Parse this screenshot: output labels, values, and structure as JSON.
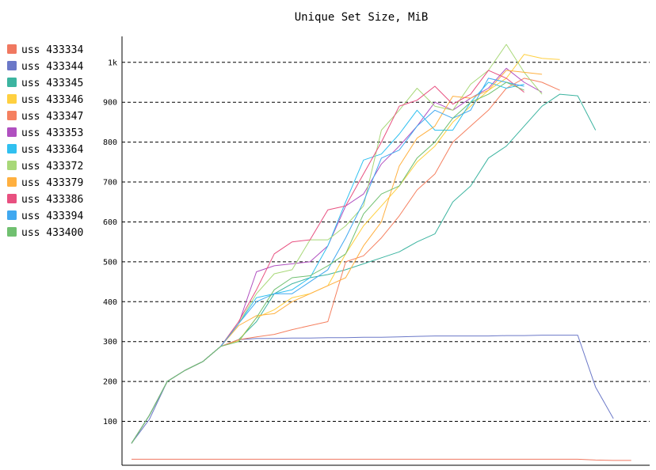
{
  "chart_data": {
    "type": "line",
    "title": "Unique Set Size, MiB",
    "xlabel": "",
    "ylabel": "",
    "ylim": [
      -10,
      1065
    ],
    "xlim": [
      0,
      28.5
    ],
    "yticks": [
      {
        "value": 100,
        "label": "100"
      },
      {
        "value": 200,
        "label": "200"
      },
      {
        "value": 300,
        "label": "300"
      },
      {
        "value": 400,
        "label": "400"
      },
      {
        "value": 500,
        "label": "500"
      },
      {
        "value": 600,
        "label": "600"
      },
      {
        "value": 700,
        "label": "700"
      },
      {
        "value": 800,
        "label": "800"
      },
      {
        "value": 900,
        "label": "900"
      },
      {
        "value": 1000,
        "label": "1k"
      }
    ],
    "grid": true,
    "legend_position": "left",
    "series": [
      {
        "name": "uss 433334",
        "color": "#f07860",
        "values": [
          5,
          5,
          5,
          5,
          5,
          5,
          5,
          5,
          5,
          5,
          5,
          5,
          5,
          5,
          5,
          5,
          5,
          5,
          5,
          5,
          5,
          5,
          5,
          5,
          5,
          5,
          3,
          2,
          2
        ]
      },
      {
        "name": "uss 433344",
        "color": "#6b78c8",
        "values": [
          45,
          105,
          200,
          228,
          250,
          288,
          305,
          308,
          308,
          309,
          309,
          310,
          310,
          311,
          311,
          312,
          313,
          314,
          314,
          314,
          314,
          315,
          315,
          316,
          316,
          316,
          186,
          107,
          null
        ]
      },
      {
        "name": "uss 433345",
        "color": "#3cb4a0",
        "values": [
          45,
          115,
          200,
          228,
          250,
          288,
          305,
          350,
          420,
          445,
          460,
          468,
          480,
          495,
          510,
          525,
          550,
          570,
          650,
          690,
          760,
          790,
          840,
          890,
          920,
          916,
          830,
          null,
          null
        ]
      },
      {
        "name": "uss 433346",
        "color": "#ffd040",
        "values": [
          45,
          115,
          200,
          228,
          250,
          288,
          302,
          360,
          380,
          410,
          420,
          440,
          520,
          590,
          640,
          690,
          750,
          790,
          850,
          890,
          930,
          960,
          1020,
          1010,
          1007,
          null,
          null,
          null,
          null
        ]
      },
      {
        "name": "uss 433347",
        "color": "#f58060",
        "values": [
          45,
          115,
          200,
          228,
          250,
          288,
          305,
          312,
          318,
          330,
          340,
          350,
          500,
          515,
          560,
          615,
          680,
          720,
          800,
          840,
          880,
          935,
          960,
          950,
          930,
          null,
          null,
          null,
          null
        ]
      },
      {
        "name": "uss 433353",
        "color": "#b050c0",
        "values": [
          45,
          115,
          200,
          228,
          250,
          288,
          345,
          475,
          490,
          495,
          500,
          540,
          640,
          670,
          745,
          790,
          840,
          900,
          880,
          910,
          935,
          985,
          950,
          925,
          null,
          null,
          null,
          null,
          null
        ]
      },
      {
        "name": "uss 433364",
        "color": "#30c0f0",
        "values": [
          45,
          115,
          200,
          228,
          250,
          288,
          345,
          410,
          420,
          430,
          460,
          540,
          650,
          755,
          770,
          820,
          880,
          830,
          830,
          900,
          950,
          935,
          945,
          null,
          null,
          null,
          null,
          null,
          null
        ]
      },
      {
        "name": "uss 433372",
        "color": "#a8d878",
        "values": [
          45,
          115,
          200,
          228,
          250,
          288,
          345,
          420,
          470,
          480,
          555,
          555,
          590,
          640,
          830,
          880,
          935,
          890,
          880,
          945,
          980,
          1045,
          975,
          920,
          null,
          null,
          null,
          null,
          null
        ]
      },
      {
        "name": "uss 433379",
        "color": "#ffb040",
        "values": [
          45,
          115,
          200,
          228,
          250,
          288,
          340,
          365,
          370,
          400,
          420,
          440,
          460,
          540,
          600,
          740,
          810,
          840,
          915,
          910,
          930,
          980,
          975,
          970,
          null,
          null,
          null,
          null,
          null
        ]
      },
      {
        "name": "uss 433386",
        "color": "#e85080",
        "values": [
          45,
          115,
          200,
          228,
          250,
          288,
          350,
          430,
          520,
          550,
          555,
          630,
          640,
          720,
          800,
          890,
          905,
          940,
          895,
          920,
          980,
          960,
          925,
          null,
          null,
          null,
          null,
          null,
          null
        ]
      },
      {
        "name": "uss 433394",
        "color": "#40a8f0",
        "values": [
          45,
          115,
          200,
          228,
          250,
          288,
          345,
          400,
          420,
          420,
          450,
          480,
          560,
          650,
          760,
          780,
          840,
          880,
          860,
          880,
          960,
          950,
          940,
          null,
          null,
          null,
          null,
          null,
          null
        ]
      },
      {
        "name": "uss 433400",
        "color": "#70c070",
        "values": [
          45,
          115,
          200,
          228,
          250,
          288,
          300,
          360,
          430,
          460,
          465,
          490,
          520,
          620,
          670,
          690,
          760,
          800,
          860,
          900,
          920,
          950,
          930,
          null,
          null,
          null,
          null,
          null,
          null
        ]
      }
    ]
  }
}
